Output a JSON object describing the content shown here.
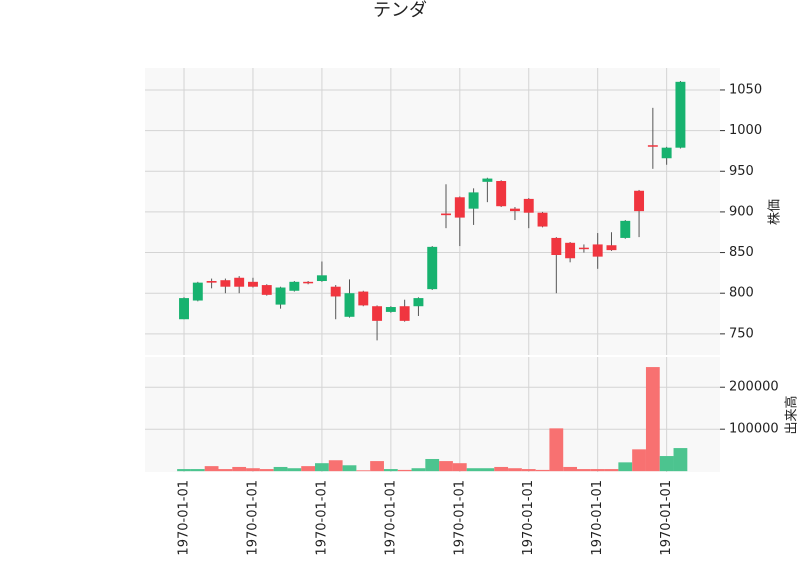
{
  "chart_data": {
    "type": "candlestick",
    "title": "テンダ",
    "categories": [
      "1970-01-01",
      null,
      null,
      null,
      null,
      "1970-01-01",
      null,
      null,
      null,
      null,
      "1970-01-01",
      null,
      null,
      null,
      null,
      "1970-01-01",
      null,
      null,
      null,
      null,
      "1970-01-01",
      null,
      null,
      null,
      null,
      "1970-01-01",
      null,
      null,
      null,
      null,
      "1970-01-01",
      null,
      null,
      null,
      null,
      "1970-01-01",
      null
    ],
    "open": [
      768,
      791,
      815,
      816,
      819,
      814,
      810,
      786,
      803,
      814,
      815,
      808,
      771,
      802,
      784,
      777,
      784,
      784,
      805,
      898,
      918,
      904,
      937,
      938,
      904,
      916,
      899,
      868,
      862,
      856,
      860,
      859,
      868,
      926,
      982,
      966,
      979
    ],
    "high": [
      795,
      814,
      818,
      818,
      821,
      819,
      811,
      808,
      815,
      815,
      839,
      810,
      817,
      803,
      785,
      784,
      792,
      795,
      858,
      934,
      919,
      929,
      942,
      939,
      906,
      917,
      900,
      869,
      863,
      860,
      874,
      875,
      890,
      927,
      1028,
      980,
      1061
    ],
    "low": [
      768,
      790,
      806,
      800,
      800,
      807,
      797,
      781,
      802,
      811,
      814,
      768,
      770,
      784,
      742,
      776,
      765,
      772,
      804,
      880,
      858,
      884,
      912,
      906,
      890,
      880,
      881,
      800,
      838,
      850,
      830,
      852,
      867,
      869,
      953,
      958,
      978
    ],
    "close": [
      794,
      813,
      813,
      808,
      808,
      808,
      798,
      807,
      814,
      813,
      822,
      796,
      800,
      785,
      766,
      783,
      766,
      794,
      857,
      896,
      893,
      924,
      941,
      907,
      901,
      899,
      882,
      847,
      843,
      855,
      845,
      853,
      889,
      901,
      981,
      979,
      1060
    ],
    "volume": [
      5000,
      5000,
      12000,
      5000,
      10000,
      7000,
      5000,
      10000,
      7000,
      12000,
      19000,
      26000,
      14000,
      2000,
      24000,
      5000,
      3000,
      7000,
      29000,
      24000,
      19000,
      7000,
      7000,
      10000,
      7000,
      5000,
      3000,
      102000,
      10000,
      5000,
      5000,
      5000,
      21000,
      52000,
      248000,
      36000,
      55000
    ],
    "ylabel": "株価",
    "ylim": [
      724,
      1077
    ],
    "yticks": [
      750,
      800,
      850,
      900,
      950,
      1000,
      1050
    ],
    "volume_ylabel": "出来高",
    "volume_ylim": [
      -2000,
      272000
    ],
    "volume_yticks": [
      100000,
      200000
    ],
    "up_color": "#17b26f",
    "down_color": "#f0353f",
    "volume_up_color": "#4cc48f",
    "volume_down_color": "#f87171",
    "grid": true
  }
}
